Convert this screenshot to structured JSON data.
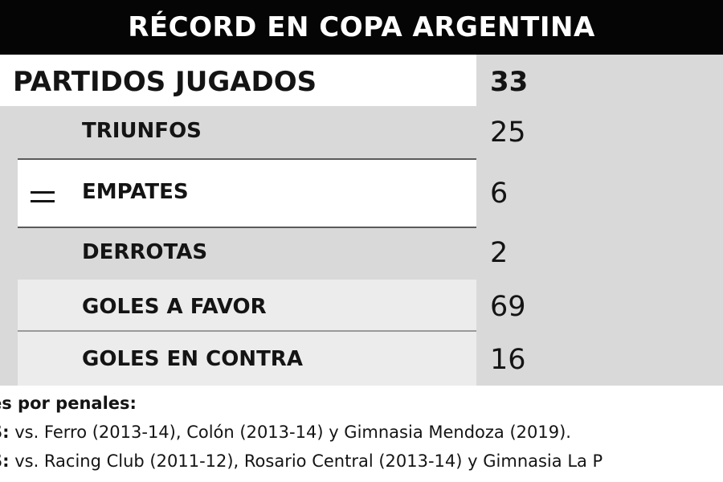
{
  "title": "RÉCORD EN COPA ARGENTINA",
  "stats": {
    "partidos": {
      "label": "PARTIDOS JUGADOS",
      "value": "33"
    },
    "triunfos": {
      "label": "TRIUNFOS",
      "value": "25"
    },
    "empates": {
      "label": "EMPATES",
      "value": "6",
      "icon": "equals-icon"
    },
    "derrotas": {
      "label": "DERROTAS",
      "value": "2"
    },
    "goles_favor": {
      "label": "GOLES A FAVOR",
      "value": "69"
    },
    "goles_contra": {
      "label": "GOLES EN CONTRA",
      "value": "16"
    }
  },
  "notes": {
    "heading": "es por penales:",
    "line1_prefix": "S:",
    "line1_text": " vs. Ferro (2013-14), Colón (2013-14) y Gimnasia Mendoza (2019).",
    "line2_prefix": "S:",
    "line2_text": " vs. Racing Club (2011-12), Rosario Central (2013-14) y Gimnasia La P"
  },
  "colors": {
    "title_bg": "#050505",
    "panel_bg": "#d9d9d9",
    "row_highlight": "#ffffff",
    "text": "#141414"
  }
}
